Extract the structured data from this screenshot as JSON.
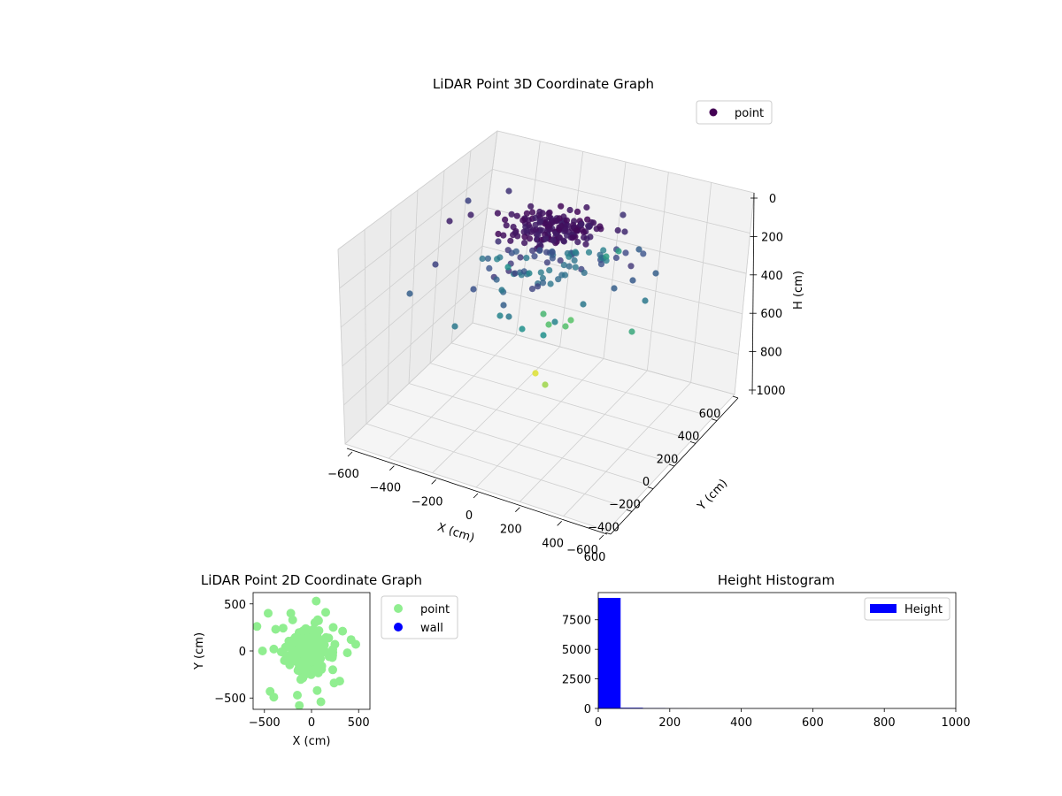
{
  "chart_data": [
    {
      "type": "scatter3d",
      "title": "LiDAR Point 3D Coordinate Graph",
      "xlabel": "X (cm)",
      "ylabel": "Y (cm)",
      "zlabel": "H (cm)",
      "xlim": [
        -600,
        600
      ],
      "ylim": [
        -600,
        600
      ],
      "zlim": [
        0,
        1000
      ],
      "z_inverted": true,
      "x_ticks": [
        "−600",
        "−400",
        "−200",
        "0",
        "200",
        "400",
        "600"
      ],
      "y_ticks": [
        "−600",
        "−400",
        "−200",
        "0",
        "200",
        "400",
        "600"
      ],
      "z_ticks": [
        "0",
        "200",
        "400",
        "600",
        "800",
        "1000"
      ],
      "grid": true,
      "colormap": "viridis",
      "legend": {
        "position": "top-right",
        "entries": [
          {
            "label": "point",
            "color": "#440154"
          }
        ]
      }
    },
    {
      "type": "scatter",
      "title": "LiDAR Point 2D Coordinate Graph",
      "xlabel": "X (cm)",
      "ylabel": "Y (cm)",
      "xlim": [
        -620,
        620
      ],
      "ylim": [
        -620,
        620
      ],
      "x_ticks": [
        "−500",
        "0",
        "500"
      ],
      "y_ticks": [
        "−500",
        "0",
        "500"
      ],
      "legend": {
        "position": "outside-right",
        "entries": [
          {
            "label": "point",
            "color": "#90ee90"
          },
          {
            "label": "wall",
            "color": "#0000ff"
          }
        ]
      },
      "series": [
        {
          "name": "point",
          "color": "#90ee90",
          "points": []
        },
        {
          "name": "wall",
          "color": "#0000ff",
          "points": []
        }
      ]
    },
    {
      "type": "histogram",
      "title": "Height Histogram",
      "xlim": [
        0,
        1000
      ],
      "ylim": [
        0,
        9800
      ],
      "x_ticks": [
        "0",
        "200",
        "400",
        "600",
        "800",
        "1000"
      ],
      "y_ticks": [
        "0",
        "2500",
        "5000",
        "7500"
      ],
      "color": "#0000ff",
      "legend": {
        "position": "top-right",
        "entries": [
          {
            "label": "Height",
            "color": "#0000ff"
          }
        ]
      },
      "bins": [
        {
          "start": 0,
          "end": 62.5,
          "count": 9350
        },
        {
          "start": 62.5,
          "end": 125,
          "count": 60
        },
        {
          "start": 125,
          "end": 187.5,
          "count": 30
        },
        {
          "start": 187.5,
          "end": 250,
          "count": 12
        },
        {
          "start": 250,
          "end": 312.5,
          "count": 8
        },
        {
          "start": 312.5,
          "end": 375,
          "count": 6
        },
        {
          "start": 375,
          "end": 437.5,
          "count": 5
        },
        {
          "start": 437.5,
          "end": 500,
          "count": 4
        },
        {
          "start": 500,
          "end": 562.5,
          "count": 4
        },
        {
          "start": 562.5,
          "end": 625,
          "count": 3
        },
        {
          "start": 625,
          "end": 687.5,
          "count": 3
        },
        {
          "start": 687.5,
          "end": 750,
          "count": 3
        },
        {
          "start": 750,
          "end": 812.5,
          "count": 2
        },
        {
          "start": 812.5,
          "end": 875,
          "count": 2
        },
        {
          "start": 875,
          "end": 937.5,
          "count": 2
        },
        {
          "start": 937.5,
          "end": 1000,
          "count": 2
        }
      ]
    }
  ]
}
